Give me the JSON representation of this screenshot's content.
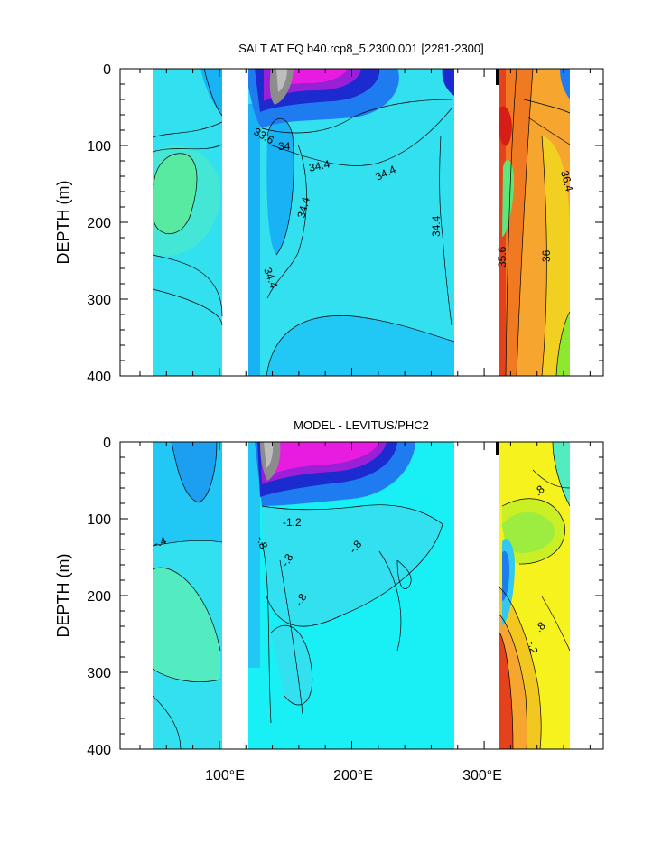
{
  "chart_data": [
    {
      "type": "contour",
      "title": "SALT AT EQ b40.rcp8_5.2300.001 [2281-2300]",
      "ylabel": "DEPTH (m)",
      "xlabel": "",
      "xlim": [
        25,
        390
      ],
      "ylim": [
        0,
        400
      ],
      "y_inverted": true,
      "yticks": [
        "0",
        "100",
        "200",
        "300",
        "400"
      ],
      "xticks": [],
      "contour_labels": [
        "33.6",
        "34",
        "34.4",
        "34.4",
        "34.4",
        "34.4",
        "34.4",
        "34.4",
        "35.6",
        "36",
        "36.4"
      ]
    },
    {
      "type": "contour",
      "title": "MODEL - LEVITUS/PHC2",
      "ylabel": "DEPTH (m)",
      "xlabel": "",
      "xlim": [
        25,
        390
      ],
      "ylim": [
        0,
        400
      ],
      "y_inverted": true,
      "yticks": [
        "0",
        "100",
        "200",
        "300",
        "400"
      ],
      "xticks": [
        "100°E",
        "200°E",
        "300°E"
      ],
      "contour_labels": [
        "-.4",
        "-1.2",
        "-.8",
        "-.8",
        "-.8",
        "-.8",
        "-.8",
        "-.2",
        ".8",
        ".8"
      ]
    }
  ]
}
